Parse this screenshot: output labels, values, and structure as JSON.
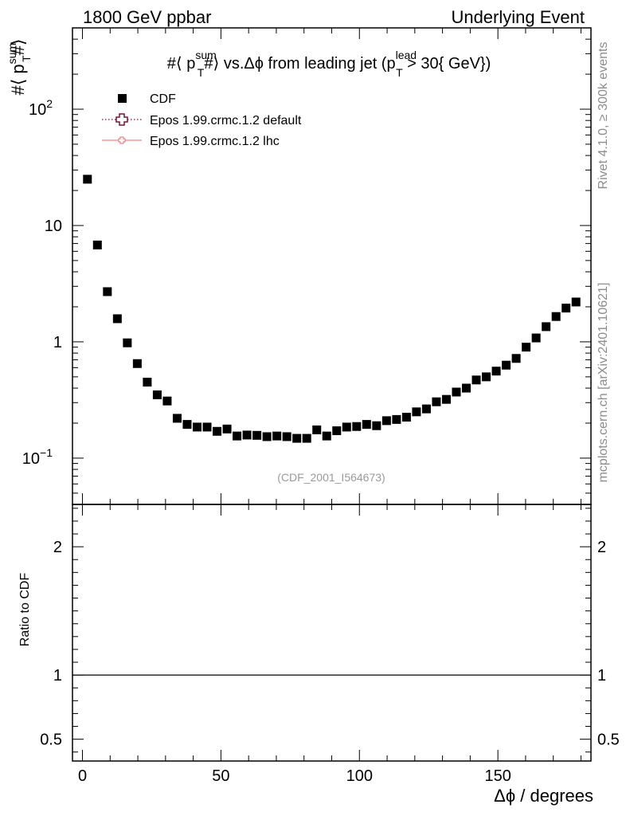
{
  "header": {
    "left": "1800 GeV ppbar",
    "right": "Underlying Event"
  },
  "side_labels": {
    "top": "Rivet 4.1.0, ≥ 300k events",
    "bottom": "mcplots.cern.ch [arXiv:2401.10621]"
  },
  "watermark": "(CDF_2001_I564673)",
  "chart_data": {
    "type": "scatter",
    "title": {
      "prefix": "#⟨ p",
      "sup1": "sum",
      "sub1": "T",
      "mid": "#⟩ vs.Δϕ from leading jet  (p",
      "sup2": "lead",
      "sub2": "T",
      "suffix": " > 30{ GeV})"
    },
    "ylabel": {
      "prefix": "#⟨ p",
      "sup": "sum",
      "sub": "T",
      "suffix": "#⟩"
    },
    "xlabel": "Δϕ / degrees",
    "ratio_ylabel": "Ratio to CDF",
    "xlim": [
      -3.6,
      183.6
    ],
    "ylim": [
      0.04,
      500
    ],
    "yscale": "log",
    "ratio_ylim": [
      0.33,
      2.33
    ],
    "x_ticks": [
      {
        "v": 0,
        "label": "0"
      },
      {
        "v": 50,
        "label": "50"
      },
      {
        "v": 100,
        "label": "100"
      },
      {
        "v": 150,
        "label": "150"
      }
    ],
    "y_ticks": [
      {
        "v": 0.1,
        "base": "10",
        "exp": "−1"
      },
      {
        "v": 1,
        "base": "1",
        "exp": ""
      },
      {
        "v": 10,
        "base": "10",
        "exp": ""
      },
      {
        "v": 100,
        "base": "10",
        "exp": "2"
      }
    ],
    "ratio_ticks": [
      {
        "v": 0.5,
        "label": "0.5"
      },
      {
        "v": 1,
        "label": "1"
      },
      {
        "v": 2,
        "label": "2"
      }
    ],
    "legend": [
      {
        "label": "CDF",
        "style": "marker"
      },
      {
        "label": "Epos 1.99.crmc.1.2 default",
        "style": "dotted",
        "color": "#7a1035"
      },
      {
        "label": "Epos 1.99.crmc.1.2 lhc",
        "style": "solid",
        "color": "#f08080"
      }
    ],
    "legend_position": "top-left",
    "series": [
      {
        "name": "CDF",
        "color": "#000000",
        "x": [
          1.8,
          5.4,
          9.0,
          12.6,
          16.2,
          19.8,
          23.4,
          27.0,
          30.6,
          34.2,
          37.8,
          41.4,
          45.0,
          48.6,
          52.2,
          55.8,
          59.4,
          63.0,
          66.6,
          70.2,
          73.8,
          77.4,
          81.0,
          84.6,
          88.2,
          91.8,
          95.4,
          99.0,
          102.6,
          106.2,
          109.8,
          113.4,
          117.0,
          120.6,
          124.2,
          127.8,
          131.4,
          135.0,
          138.6,
          142.2,
          145.8,
          149.4,
          153.0,
          156.6,
          160.2,
          163.8,
          167.4,
          171.0,
          174.6,
          178.2
        ],
        "y": [
          25,
          6.8,
          2.7,
          1.58,
          0.98,
          0.65,
          0.45,
          0.35,
          0.31,
          0.22,
          0.195,
          0.185,
          0.185,
          0.17,
          0.178,
          0.155,
          0.158,
          0.157,
          0.153,
          0.155,
          0.153,
          0.148,
          0.148,
          0.175,
          0.155,
          0.172,
          0.185,
          0.187,
          0.195,
          0.19,
          0.21,
          0.215,
          0.225,
          0.25,
          0.265,
          0.305,
          0.32,
          0.37,
          0.4,
          0.47,
          0.5,
          0.56,
          0.63,
          0.72,
          0.9,
          1.08,
          1.35,
          1.65,
          1.95,
          2.2
        ]
      }
    ]
  }
}
